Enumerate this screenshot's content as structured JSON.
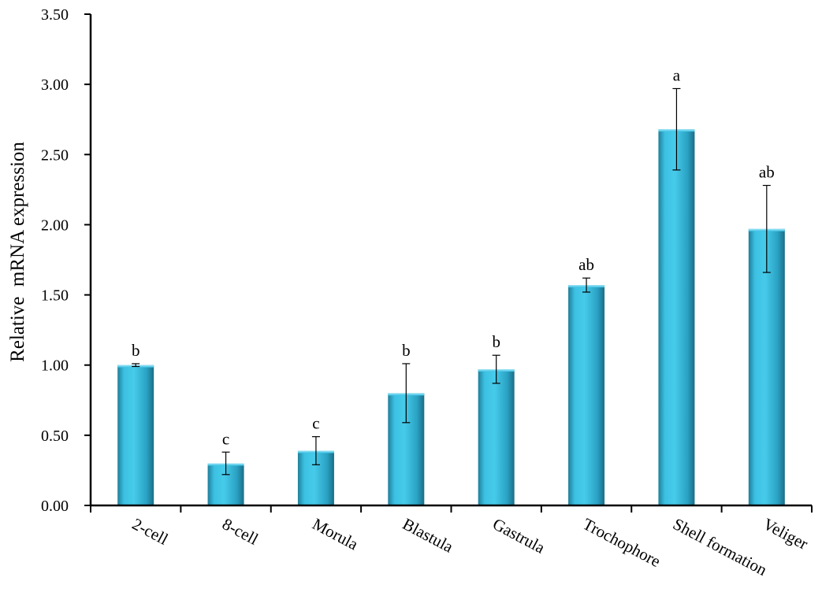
{
  "chart_data": {
    "type": "bar",
    "title": "",
    "xlabel": "",
    "ylabel": "Relative  mRNA expression",
    "ylim": [
      0,
      3.5
    ],
    "yticks": [
      "0.00",
      "0.50",
      "1.00",
      "1.50",
      "2.00",
      "2.50",
      "3.00",
      "3.50"
    ],
    "categories": [
      "2-cell",
      "8-cell",
      "Morula",
      "Blastula",
      "Gastrula",
      "Trochophore",
      "Shell formation",
      "Veliger"
    ],
    "values": [
      1.0,
      0.3,
      0.39,
      0.8,
      0.97,
      1.57,
      2.68,
      1.97
    ],
    "errors": [
      0.01,
      0.08,
      0.1,
      0.21,
      0.1,
      0.05,
      0.29,
      0.31
    ],
    "significance": [
      "b",
      "c",
      "c",
      "b",
      "b",
      "ab",
      "a",
      "ab"
    ],
    "bar_color": "#3fbfe0",
    "grid": false,
    "legend": "none"
  }
}
